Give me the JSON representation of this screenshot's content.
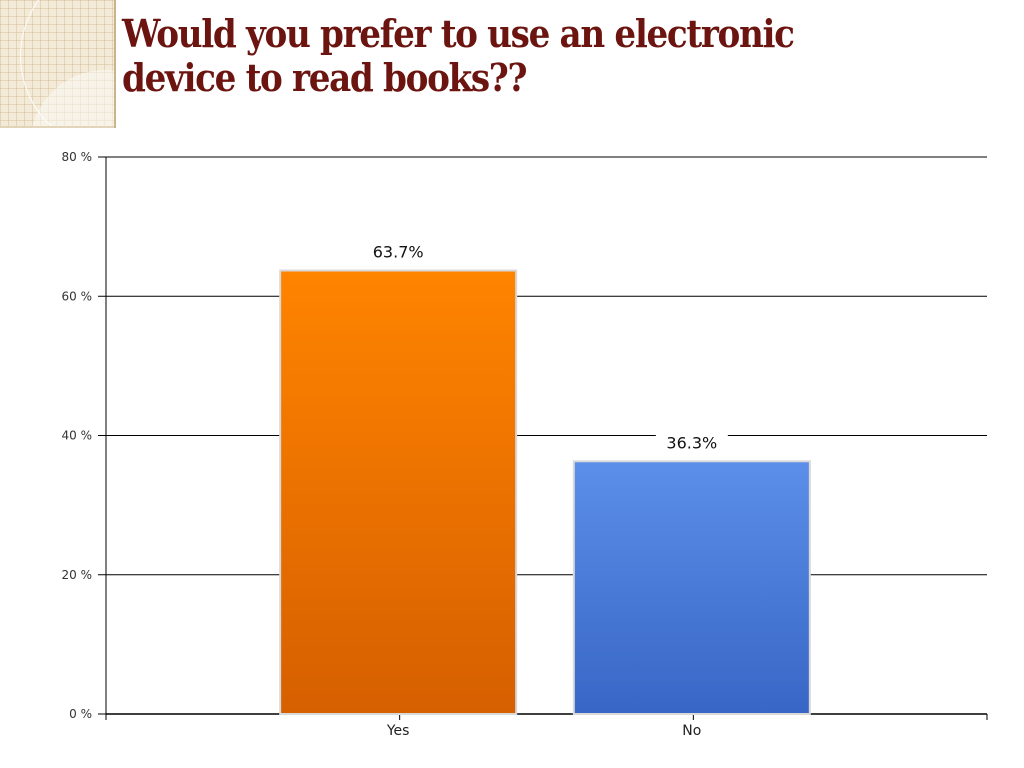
{
  "slide": {
    "title": "Would you prefer to use an electronic device to read books??"
  },
  "chart_data": {
    "type": "bar",
    "title": "",
    "xlabel": "",
    "ylabel": "",
    "categories": [
      "Yes",
      "No"
    ],
    "values": [
      63.7,
      36.3
    ],
    "data_labels": [
      "63.7%",
      "36.3%"
    ],
    "colors": [
      "#f07a00",
      "#4f85e0"
    ],
    "ylim": [
      0,
      80
    ],
    "yticks": [
      0,
      20,
      40,
      60,
      80
    ],
    "ytick_labels": [
      "0 %",
      "20 %",
      "40 %",
      "60 %",
      "80 %"
    ],
    "grid": true,
    "legend": "none"
  }
}
